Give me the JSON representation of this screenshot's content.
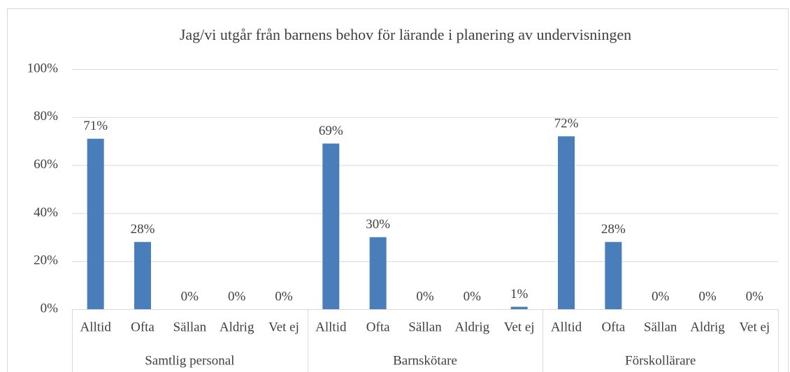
{
  "chart_data": {
    "type": "bar",
    "title": "Jag/vi utgår från barnens behov för lärande i planering av undervisningen",
    "color": "#4a7ebb",
    "grid": true,
    "ylim": [
      0,
      100
    ],
    "yticks": [
      {
        "value": 0,
        "label": "0%"
      },
      {
        "value": 20,
        "label": "20%"
      },
      {
        "value": 40,
        "label": "40%"
      },
      {
        "value": 60,
        "label": "60%"
      },
      {
        "value": 80,
        "label": "80%"
      },
      {
        "value": 100,
        "label": "100%"
      }
    ],
    "groups": [
      {
        "name": "Samtlig personal",
        "categories": [
          "Alltid",
          "Ofta",
          "Sällan",
          "Aldrig",
          "Vet ej"
        ],
        "values": [
          71,
          28,
          0,
          0,
          0
        ],
        "value_labels": [
          "71%",
          "28%",
          "0%",
          "0%",
          "0%"
        ]
      },
      {
        "name": "Barnskötare",
        "categories": [
          "Alltid",
          "Ofta",
          "Sällan",
          "Aldrig",
          "Vet ej"
        ],
        "values": [
          69,
          30,
          0,
          0,
          1
        ],
        "value_labels": [
          "69%",
          "30%",
          "0%",
          "0%",
          "1%"
        ]
      },
      {
        "name": "Förskollärare",
        "categories": [
          "Alltid",
          "Ofta",
          "Sällan",
          "Aldrig",
          "Vet ej"
        ],
        "values": [
          72,
          28,
          0,
          0,
          0
        ],
        "value_labels": [
          "72%",
          "28%",
          "0%",
          "0%",
          "0%"
        ]
      }
    ]
  }
}
